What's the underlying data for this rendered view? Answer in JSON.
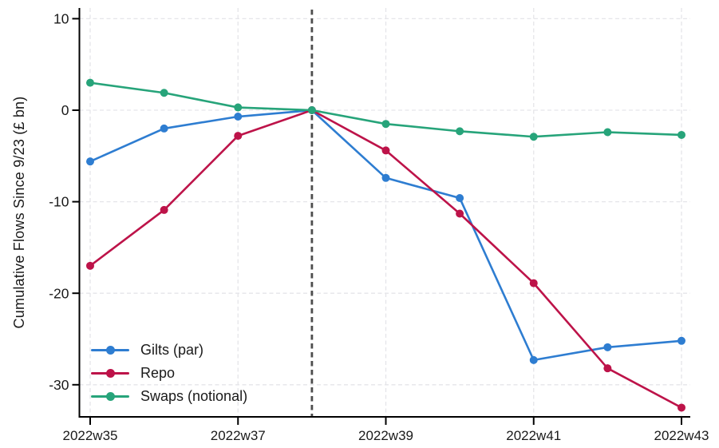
{
  "figure": {
    "background_color": "#ffffff",
    "text_color": "#1a1a1a",
    "axis_color": "#000000",
    "grid_color": "#e5e5e9"
  },
  "chart_data": {
    "type": "line",
    "title": "",
    "xlabel": "",
    "ylabel": "Cumulative Flows Since 9/23 (£ bn)",
    "x": [
      "2022w35",
      "2022w36",
      "2022w37",
      "2022w38",
      "2022w39",
      "2022w40",
      "2022w41",
      "2022w42",
      "2022w43"
    ],
    "x_tick_labels": [
      "2022w35",
      "2022w37",
      "2022w39",
      "2022w41",
      "2022w43"
    ],
    "y_ticks": [
      10,
      0,
      -10,
      -20,
      -30
    ],
    "ylim": [
      -33.5,
      11.2
    ],
    "grid": true,
    "legend_position": "bottom-left",
    "reference_line": {
      "x": "2022w38",
      "style": "dashed",
      "color": "#4d4d4d"
    },
    "series": [
      {
        "name": "Gilts (par)",
        "color": "#2e7dd1",
        "values": [
          -5.6,
          -2.0,
          -0.7,
          0,
          -7.4,
          -9.6,
          -27.3,
          -25.9,
          -25.2
        ]
      },
      {
        "name": "Repo",
        "color": "#bd1349",
        "values": [
          -17.0,
          -10.9,
          -2.8,
          0,
          -4.4,
          -11.3,
          -18.9,
          -28.2,
          -32.5
        ]
      },
      {
        "name": "Swaps (notional)",
        "color": "#27a47a",
        "values": [
          3.0,
          1.9,
          0.3,
          0,
          -1.5,
          -2.3,
          -2.9,
          -2.4,
          -2.7
        ]
      }
    ]
  }
}
